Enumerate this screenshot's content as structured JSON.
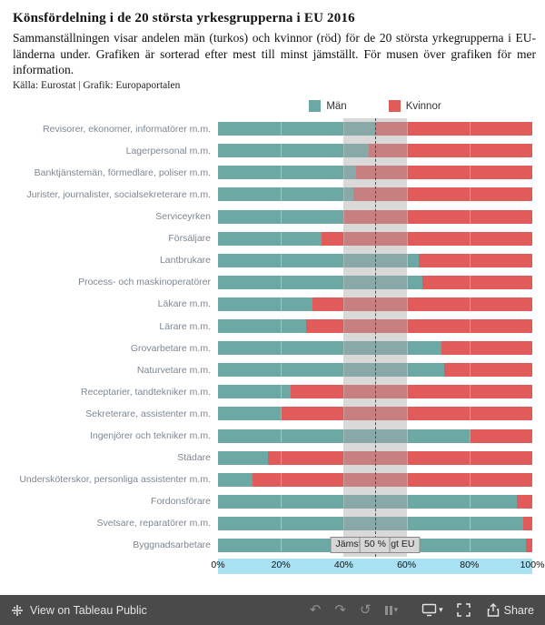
{
  "header": {
    "title": "Könsfördelning i de 20 största yrkesgrupperna i EU 2016",
    "description": "Sammanställningen visar andelen män (turkos) och kvinnor (röd) för de 20 största yrkegrupperna i EU-länderna under. Grafiken är sorterad efter mest till minst jämställt. För musen över grafiken för mer information.",
    "source": "Källa: Eurostat | Grafik: Europaportalen"
  },
  "legend": {
    "men_label": "Män",
    "women_label": "Kvinnor"
  },
  "colors": {
    "men": "#6CA8A4",
    "women": "#E15B5B",
    "band_overlay": "#AAAAAA",
    "axis_strip": "#A9E2F3",
    "toolbar_bg": "#4A4A4A"
  },
  "chart_data": {
    "type": "bar",
    "orientation": "horizontal-stacked",
    "title": "Könsfördelning i de 20 största yrkesgrupperna i EU 2016",
    "xlabel": "",
    "ylabel": "",
    "xlim": [
      0,
      100
    ],
    "x_ticks": [
      "0%",
      "20%",
      "40%",
      "60%",
      "80%",
      "100%"
    ],
    "x_tick_positions": [
      0,
      20,
      40,
      60,
      80,
      100
    ],
    "gridlines": [
      20,
      40,
      60,
      80
    ],
    "reference_band": [
      40,
      60
    ],
    "reference_line": 50,
    "reference_band_label": "Jämställt enligt EU",
    "reference_line_label": "50 %",
    "categories": [
      "Revisorer, ekonomer, informatörer m.m.",
      "Lagerpersonal m.m.",
      "Banktjänstemän, förmedlare, poliser m.m.",
      "Jurister, journalister, socialsekreterare m.m.",
      "Serviceyrken",
      "Försäljare",
      "Lantbrukare",
      "Process- och maskinoperatörer",
      "Läkare m.m.",
      "Lärare m.m.",
      "Grovarbetare m.m.",
      "Naturvetare m.m.",
      "Receptarier, tandtekniker m.m.",
      "Sekreterare, assistenter m.m.",
      "Ingenjörer och tekniker m.m.",
      "Städare",
      "Undersköterskor, personliga assistenter m.m.",
      "Fordonsförare",
      "Svetsare, reparatörer m.m.",
      "Byggnadsarbetare"
    ],
    "series": [
      {
        "name": "Män",
        "values": [
          50,
          48,
          44,
          43,
          40,
          33,
          64,
          65,
          30,
          28,
          71,
          72,
          23,
          20,
          80,
          16,
          11,
          95,
          97,
          98
        ]
      },
      {
        "name": "Kvinnor",
        "values": [
          50,
          52,
          56,
          57,
          60,
          67,
          36,
          35,
          70,
          72,
          29,
          28,
          77,
          80,
          20,
          84,
          89,
          5,
          3,
          2
        ]
      }
    ],
    "legend_position": "top-center"
  },
  "toolbar": {
    "view_label": "View on Tableau Public",
    "share_label": "Share"
  }
}
